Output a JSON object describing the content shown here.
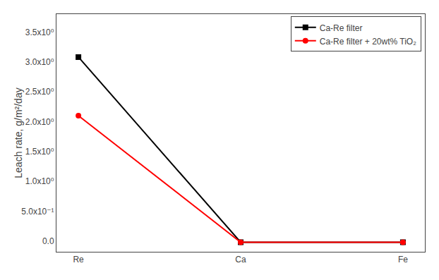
{
  "chart_data": {
    "type": "line",
    "categories": [
      "Re",
      "Ca",
      "Fe"
    ],
    "series": [
      {
        "name": "Ca-Re filter",
        "color": "black",
        "marker": "square",
        "values": [
          3.08,
          -0.02,
          -0.02
        ]
      },
      {
        "name": "Ca-Re filter + 20wt% TiO₂",
        "color": "red",
        "marker": "circle",
        "values": [
          2.1,
          -0.02,
          -0.02
        ]
      }
    ],
    "ylabel": "Leach rate, g/m²/day",
    "ylim": [
      -0.18,
      3.8
    ],
    "yticks": [
      {
        "value": 0.0,
        "label": "0.0"
      },
      {
        "value": 0.5,
        "label": "5.0x10⁻¹"
      },
      {
        "value": 1.0,
        "label": "1.0x10⁰"
      },
      {
        "value": 1.5,
        "label": "1.5x10⁰"
      },
      {
        "value": 2.0,
        "label": "2.0x10⁰"
      },
      {
        "value": 2.5,
        "label": "2.5x10⁰"
      },
      {
        "value": 3.0,
        "label": "3.0x10⁰"
      },
      {
        "value": 3.5,
        "label": "3.5x10⁰"
      }
    ],
    "grid": false,
    "legend": "upper right"
  }
}
